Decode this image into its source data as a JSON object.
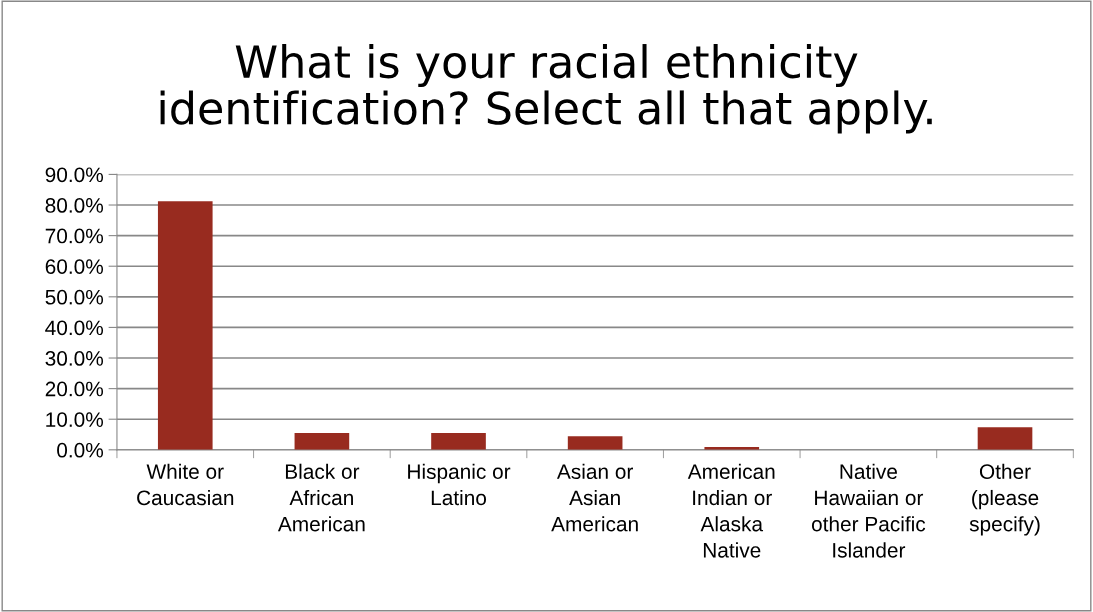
{
  "chart_data": {
    "type": "bar",
    "title": "What is your racial ethnicity\nidentification? Select all that apply.",
    "categories": [
      "White or\nCaucasian",
      "Black or\nAfrican\nAmerican",
      "Hispanic or\nLatino",
      "Asian or\nAsian\nAmerican",
      "American\nIndian or\nAlaska\nNative",
      "Native\nHawaiian or\nother Pacific\nIslander",
      "Other\n(please\nspecify)"
    ],
    "values": [
      81.2,
      5.5,
      5.5,
      4.4,
      0.9,
      0,
      7.4
    ],
    "color": "#982b1f",
    "ylim": [
      0,
      90
    ],
    "yticks": [
      {
        "value": 0,
        "label": "0.0%"
      },
      {
        "value": 10,
        "label": "10.0%"
      },
      {
        "value": 20,
        "label": "20.0%"
      },
      {
        "value": 30,
        "label": "30.0%"
      },
      {
        "value": 40,
        "label": "40.0%"
      },
      {
        "value": 50,
        "label": "50.0%"
      },
      {
        "value": 60,
        "label": "60.0%"
      },
      {
        "value": 70,
        "label": "70.0%"
      },
      {
        "value": 80,
        "label": "80.0%"
      },
      {
        "value": 90,
        "label": "90.0%"
      }
    ],
    "grid": "y"
  }
}
